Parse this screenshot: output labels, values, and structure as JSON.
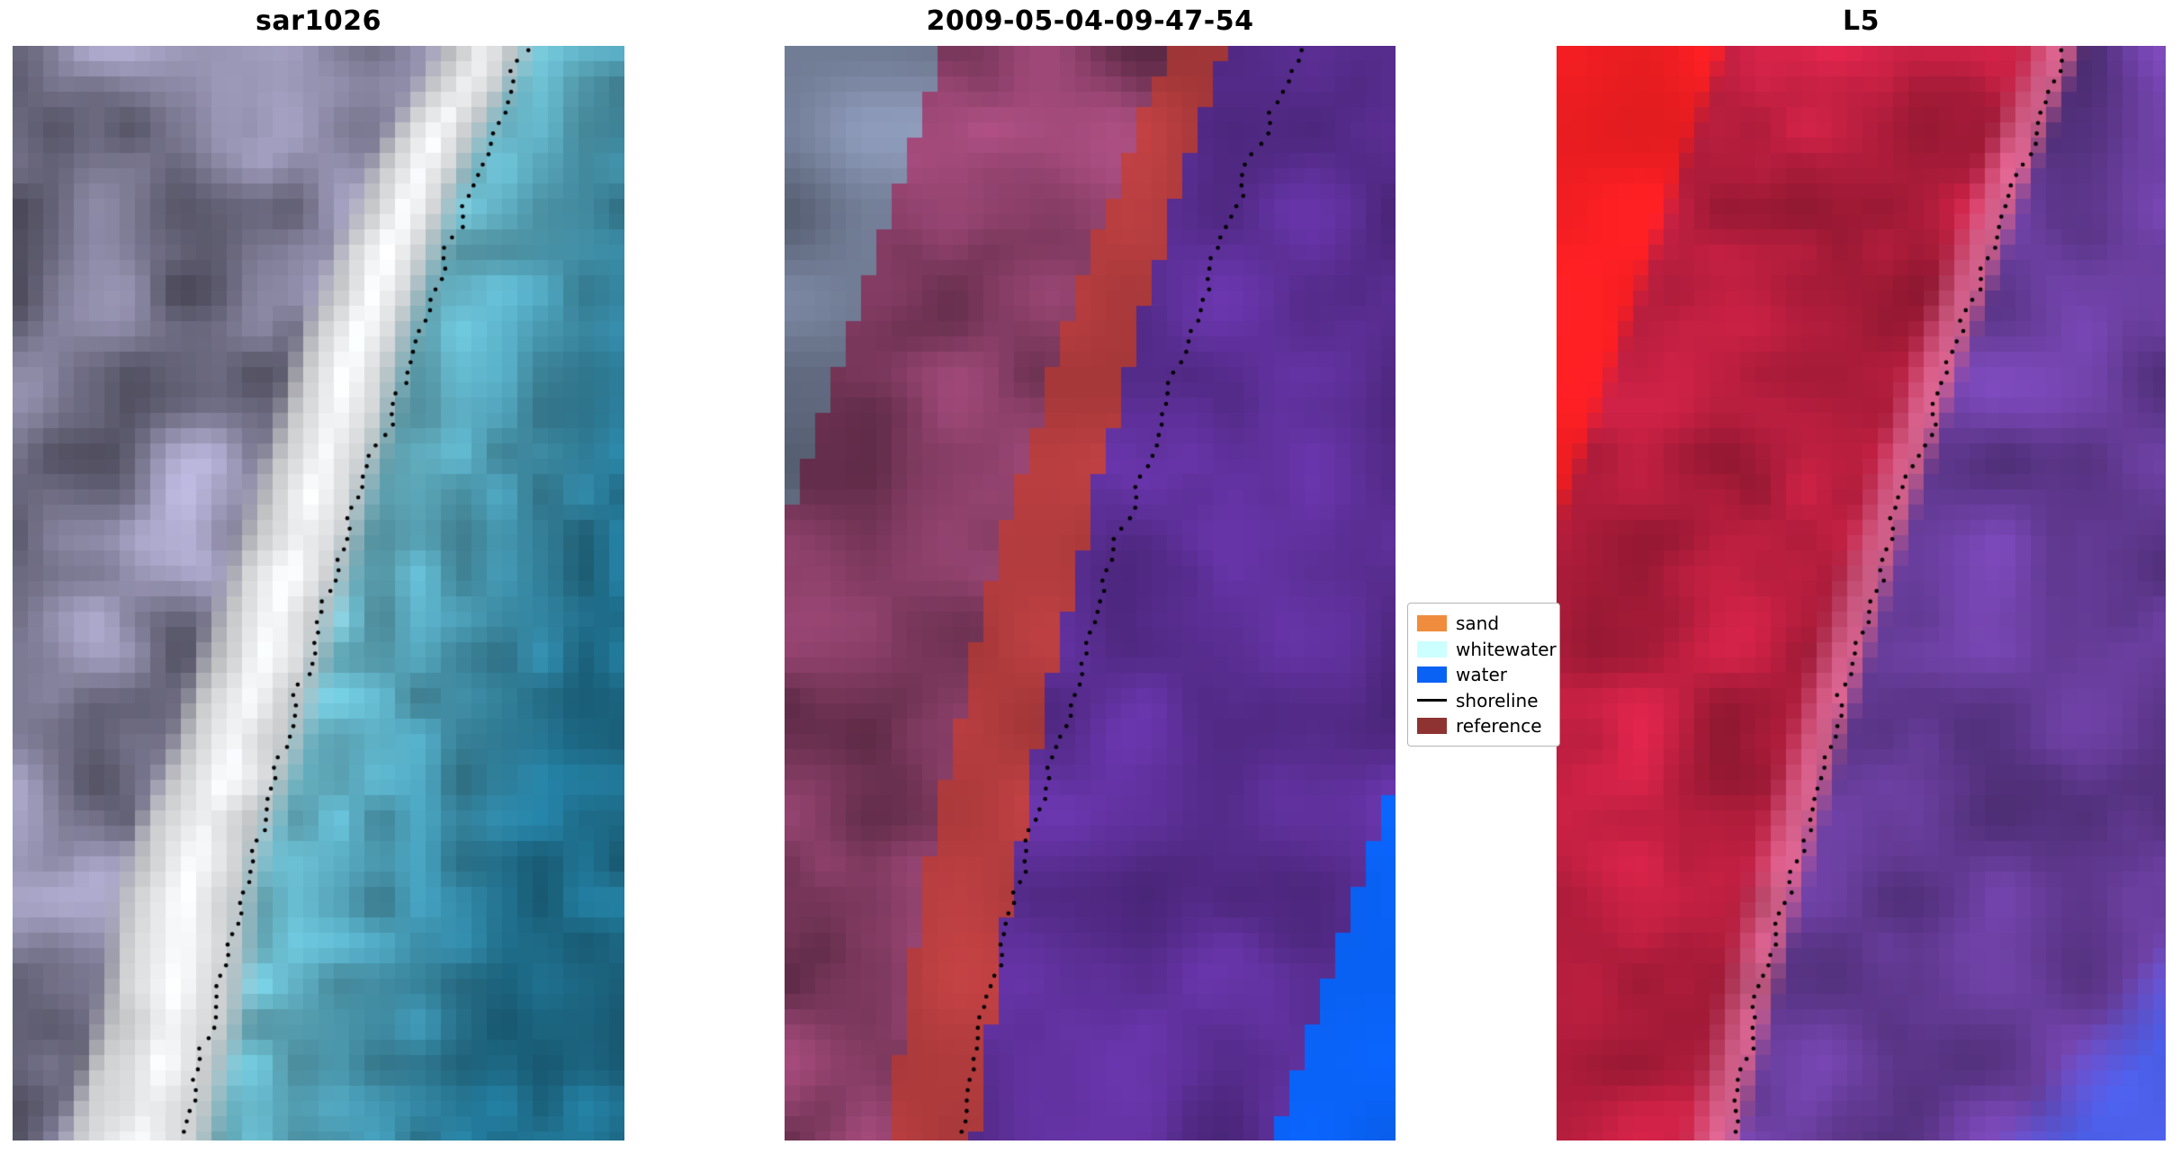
{
  "figure": {
    "background": "#ffffff",
    "panels": [
      {
        "title": "sar1026"
      },
      {
        "title": "2009-05-04-09-47-54"
      },
      {
        "title": "L5"
      }
    ]
  },
  "legend": {
    "items": [
      {
        "label": "sand",
        "color": "#f08c3e",
        "kind": "patch"
      },
      {
        "label": "whitewater",
        "color": "#ccffff",
        "kind": "patch"
      },
      {
        "label": "water",
        "color": "#0a62f5",
        "kind": "patch"
      },
      {
        "label": "shoreline",
        "color": "#000000",
        "kind": "line"
      },
      {
        "label": "reference",
        "color": "#8e3331",
        "kind": "patch"
      }
    ]
  },
  "chart_data": [
    {
      "type": "heatmap",
      "title": "sar1026",
      "axes": "off",
      "description": "Pixelated coastal satellite chip: mottled grey-violet land on the left, bright white diagonal surf/sand band, teal-blue water on the right; black dotted detected shoreline runs from upper right to lower left",
      "palette": {
        "land": "#8a87a3",
        "surf": "#f3f5f7",
        "nearshore": "#6fb9c8",
        "water": "#1f6e8c",
        "shoreline_dots": "#000000"
      }
    },
    {
      "type": "heatmap",
      "title": "2009-05-04-09-47-54",
      "axes": "off",
      "description": "Same chip with pixel classification overlay: slate-grey unclassified upper-left corner, maroon reference-tinted land, brick-red sand band along the shore, violet-tinted water, vivid blue open-water wedge in the lower right; black dotted shoreline",
      "palette": {
        "unclassified": "#76819b",
        "reference_land": "#8a3f68",
        "sand_band": "#b23c3e",
        "water_overlay": "#5c2f96",
        "open_water": "#0a62f5",
        "shoreline_dots": "#000000"
      }
    },
    {
      "type": "heatmap",
      "title": "L5",
      "axes": "off",
      "description": "Landsat 5 false-colour chip: vivid red patch upper left, crimson land, pink transition at the shore, violet water, blue lower-right corner; black dotted shoreline",
      "palette": {
        "bright_red": "#f81f23",
        "land_red": "#bc1f40",
        "shore_pink": "#d2608a",
        "water_purple": "#6b3fa0",
        "corner_blue": "#4f63f2",
        "shoreline_dots": "#000000"
      }
    }
  ]
}
